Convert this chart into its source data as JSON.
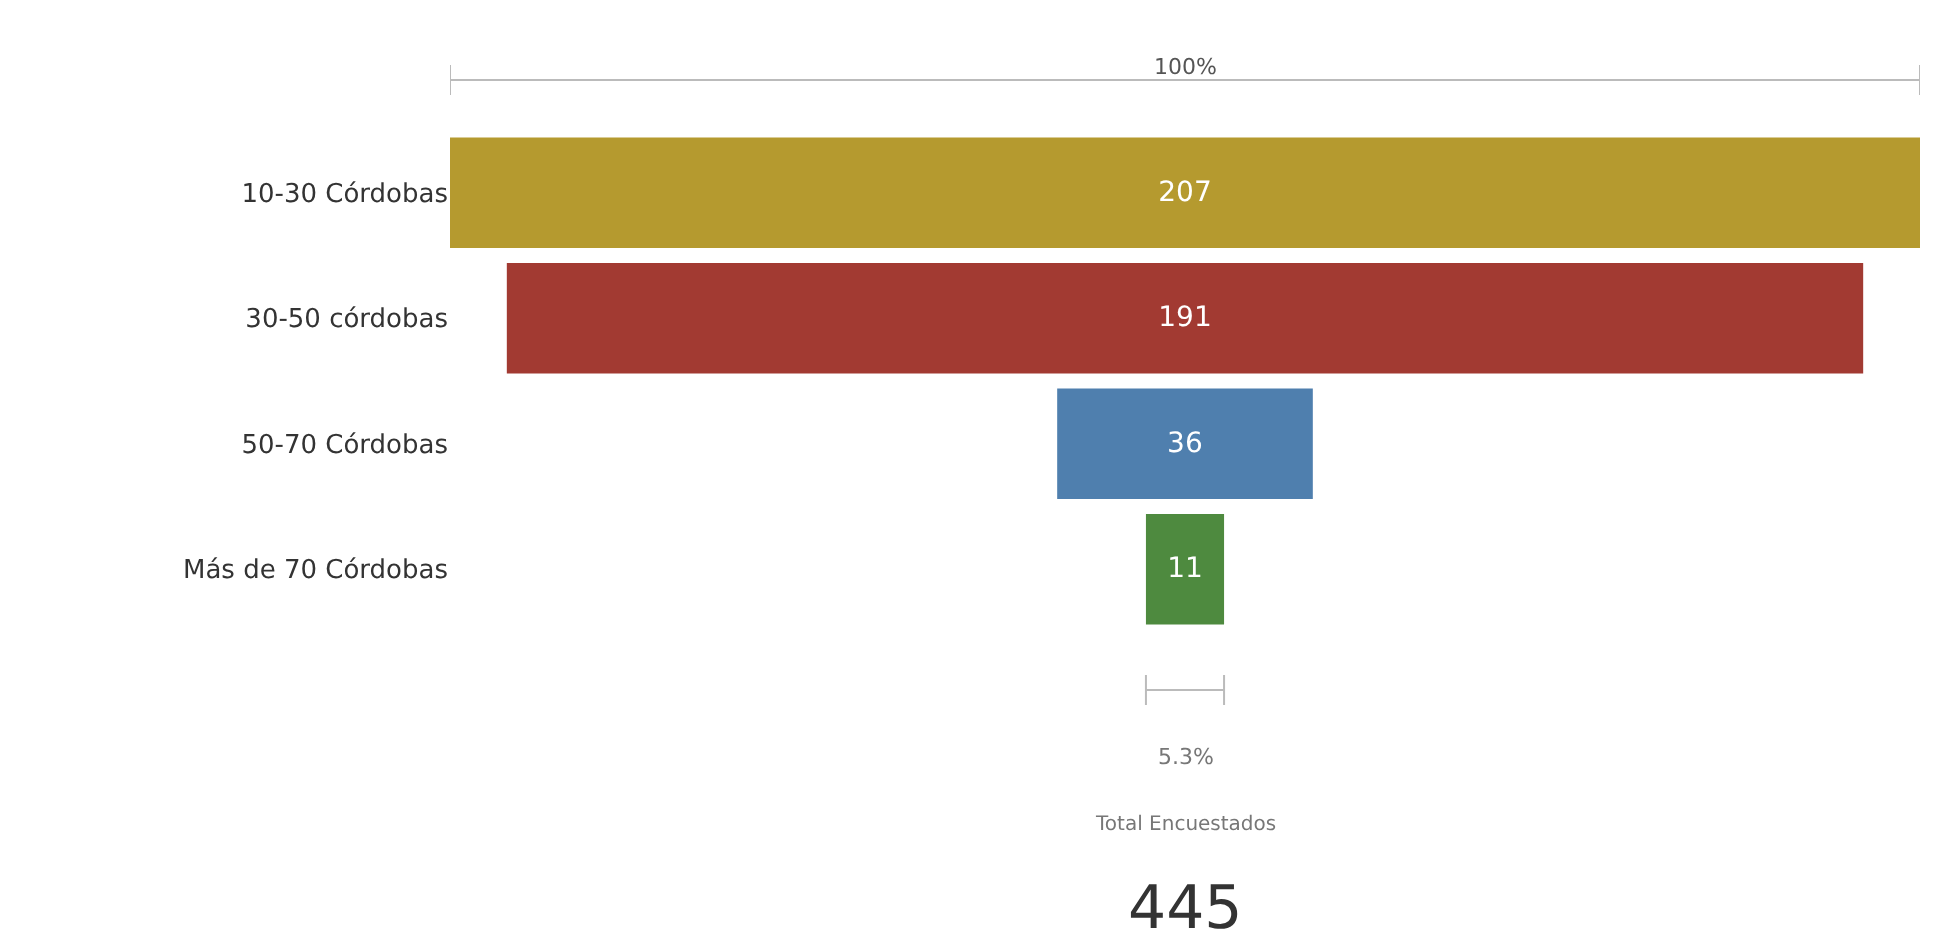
{
  "chart_data": {
    "type": "other",
    "categories": [
      "10-30 Córdobas",
      "30-50 córdobas",
      "50-70 Córdobas",
      "Más de 70 Córdobas"
    ],
    "values": [
      207,
      191,
      36,
      11
    ],
    "colors": [
      "#b59a2f",
      "#a23a32",
      "#4f7fae",
      "#4e8a3f"
    ],
    "data_labels": true,
    "annotations": [
      "100%",
      "5.3%",
      "Total Encuestados",
      "445"
    ]
  }
}
